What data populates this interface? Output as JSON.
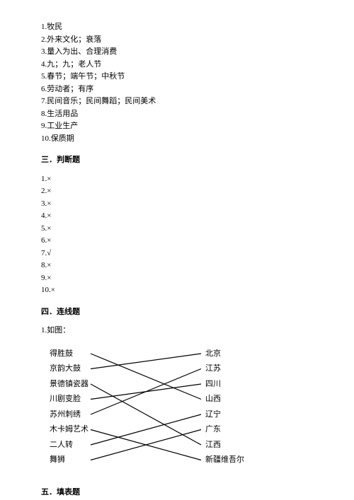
{
  "fillBlank": {
    "items": [
      "1.牧民",
      "2.外来文化；衰落",
      "3.量入为出、合理消费",
      "4.九；九；老人节",
      "5.春节；端午节；中秋节",
      "6.劳动者；有序",
      "7.民间音乐；民间舞蹈；民间美术",
      "8.生活用品",
      "9.工业生产",
      "10.保质期"
    ]
  },
  "section3": {
    "title": "三．判断题",
    "items": [
      "1.×",
      "2.×",
      "3.×",
      "4.×",
      "5.×",
      "6.×",
      "7.√",
      "8.×",
      "9.×",
      "10.×"
    ]
  },
  "section4": {
    "title": "四．连线题",
    "prompt": "1.如图：",
    "left": [
      "得胜鼓",
      "京韵大鼓",
      "景德镇瓷器",
      "川剧变脸",
      "苏州刺绣",
      "木卡姆艺术",
      "二人转",
      "舞狮"
    ],
    "right": [
      "北京",
      "江苏",
      "四川",
      "山西",
      "辽宁",
      "广东",
      "江西",
      "新疆维吾尔"
    ],
    "connections": [
      {
        "from": 0,
        "to": 3
      },
      {
        "from": 1,
        "to": 0
      },
      {
        "from": 2,
        "to": 6
      },
      {
        "from": 3,
        "to": 2
      },
      {
        "from": 4,
        "to": 1
      },
      {
        "from": 5,
        "to": 7
      },
      {
        "from": 6,
        "to": 4
      },
      {
        "from": 7,
        "to": 5
      }
    ],
    "layout": {
      "leftX": 58,
      "rightX": 214,
      "startY": 10,
      "stepY": 21.5
    }
  },
  "section5": {
    "title": "五．填表题"
  }
}
